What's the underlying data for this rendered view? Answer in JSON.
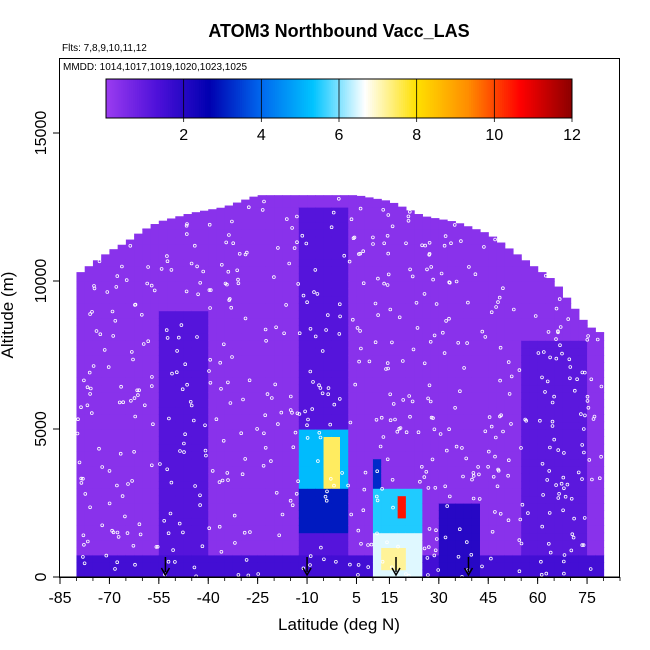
{
  "chart_data": {
    "type": "heatmap",
    "title": "ATOM3 Northbound Vacc_LAS",
    "flights_label": "Flts: 7,8,9,10,11,12",
    "dates_label": "MMDD: 1014,1017,1019,1020,1023,1025",
    "xlabel": "Latitude (deg N)",
    "ylabel": "Altitude (m)",
    "xlim": [
      -85,
      85
    ],
    "ylim": [
      0,
      17500
    ],
    "x_ticks": [
      -85,
      -70,
      -55,
      -40,
      -25,
      -10,
      5,
      15,
      30,
      45,
      60,
      75
    ],
    "y_ticks": [
      0,
      5000,
      10000,
      15000
    ],
    "colorbar": {
      "range": [
        0,
        12
      ],
      "ticks": [
        2,
        4,
        6,
        8,
        10,
        12
      ],
      "colors": [
        "#9b3cf0",
        "#4d10d9",
        "#0000b0",
        "#0068ee",
        "#00c4ff",
        "#ffffff",
        "#ffe000",
        "#ff8c00",
        "#ff0000",
        "#8b0000"
      ]
    },
    "background_value": 0.3,
    "profile_ceiling": [
      [
        -80,
        10200
      ],
      [
        -75,
        10600
      ],
      [
        -70,
        11000
      ],
      [
        -65,
        11300
      ],
      [
        -60,
        11700
      ],
      [
        -55,
        12000
      ],
      [
        -45,
        12300
      ],
      [
        -35,
        12500
      ],
      [
        -25,
        12900
      ],
      [
        -10,
        12900
      ],
      [
        5,
        12900
      ],
      [
        15,
        12700
      ],
      [
        25,
        12200
      ],
      [
        35,
        12000
      ],
      [
        45,
        11600
      ],
      [
        55,
        10800
      ],
      [
        65,
        10000
      ],
      [
        75,
        8500
      ],
      [
        80,
        8200
      ]
    ],
    "enhancements": [
      {
        "lat": [
          -55,
          -40
        ],
        "alt": [
          0,
          9000
        ],
        "value": 1.2
      },
      {
        "lat": [
          -12,
          3
        ],
        "alt": [
          0,
          12500
        ],
        "value": 1.2
      },
      {
        "lat": [
          55,
          75
        ],
        "alt": [
          0,
          8000
        ],
        "value": 1.1
      },
      {
        "lat": [
          -85,
          80
        ],
        "alt": [
          0,
          700
        ],
        "value": 1.5
      },
      {
        "lat": [
          -12,
          3
        ],
        "alt": [
          3000,
          5000
        ],
        "value": 5.2
      },
      {
        "lat": [
          -12,
          3
        ],
        "alt": [
          1500,
          3000
        ],
        "value": 3.0
      },
      {
        "lat": [
          -5,
          -1
        ],
        "alt": [
          3000,
          4800
        ],
        "value": 7.5
      },
      {
        "lat": [
          9,
          25
        ],
        "alt": [
          0,
          3000
        ],
        "value": 5.5
      },
      {
        "lat": [
          9,
          25
        ],
        "alt": [
          0,
          1500
        ],
        "value": 6.5
      },
      {
        "lat": [
          12,
          19
        ],
        "alt": [
          300,
          1000
        ],
        "value": 7.2
      },
      {
        "lat": [
          17,
          20
        ],
        "alt": [
          2000,
          2800
        ],
        "value": 10.5
      },
      {
        "lat": [
          9,
          13
        ],
        "alt": [
          2000,
          4000
        ],
        "value": 3.2
      },
      {
        "lat": [
          30,
          42
        ],
        "alt": [
          0,
          2500
        ],
        "value": 2.0
      }
    ],
    "arrows_lat": [
      -53,
      -10,
      17,
      39
    ],
    "sample_points_count": 600
  }
}
